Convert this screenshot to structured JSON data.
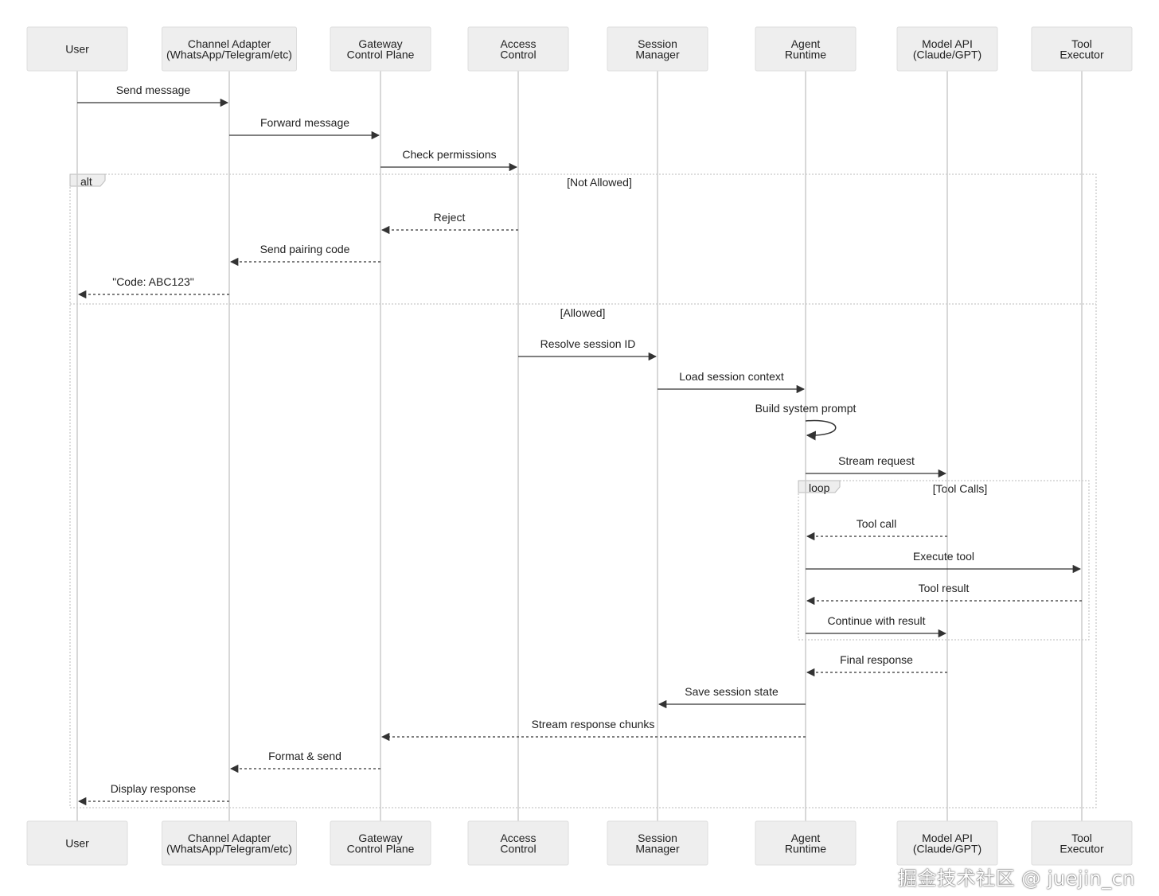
{
  "actors": [
    {
      "label": [
        "User"
      ]
    },
    {
      "label": [
        "Channel Adapter",
        "(WhatsApp/Telegram/etc)"
      ]
    },
    {
      "label": [
        "Gateway",
        "Control Plane"
      ]
    },
    {
      "label": [
        "Access",
        "Control"
      ]
    },
    {
      "label": [
        "Session",
        "Manager"
      ]
    },
    {
      "label": [
        "Agent",
        "Runtime"
      ]
    },
    {
      "label": [
        "Model API",
        "(Claude/GPT)"
      ]
    },
    {
      "label": [
        "Tool",
        "Executor"
      ]
    }
  ],
  "messages": [
    {
      "from": 0,
      "to": 1,
      "label": "Send message",
      "dashed": false
    },
    {
      "from": 1,
      "to": 2,
      "label": "Forward message",
      "dashed": false
    },
    {
      "from": 2,
      "to": 3,
      "label": "Check permissions",
      "dashed": false
    },
    {
      "from": 3,
      "to": 2,
      "label": "Reject",
      "dashed": true
    },
    {
      "from": 2,
      "to": 1,
      "label": "Send pairing code",
      "dashed": true
    },
    {
      "from": 1,
      "to": 0,
      "label": "\"Code: ABC123\"",
      "dashed": true
    },
    {
      "from": 3,
      "to": 4,
      "label": "Resolve session ID",
      "dashed": false
    },
    {
      "from": 4,
      "to": 5,
      "label": "Load session context",
      "dashed": false
    },
    {
      "from": 5,
      "to": 5,
      "label": "Build system prompt",
      "dashed": false
    },
    {
      "from": 5,
      "to": 6,
      "label": "Stream request",
      "dashed": false
    },
    {
      "from": 6,
      "to": 5,
      "label": "Tool call",
      "dashed": true
    },
    {
      "from": 5,
      "to": 7,
      "label": "Execute tool",
      "dashed": false
    },
    {
      "from": 7,
      "to": 5,
      "label": "Tool result",
      "dashed": true
    },
    {
      "from": 5,
      "to": 6,
      "label": "Continue with result",
      "dashed": false
    },
    {
      "from": 6,
      "to": 5,
      "label": "Final response",
      "dashed": true
    },
    {
      "from": 5,
      "to": 4,
      "label": "Save session state",
      "dashed": false
    },
    {
      "from": 5,
      "to": 2,
      "label": "Stream response chunks",
      "dashed": true
    },
    {
      "from": 2,
      "to": 1,
      "label": "Format & send",
      "dashed": true
    },
    {
      "from": 1,
      "to": 0,
      "label": "Display response",
      "dashed": true
    }
  ],
  "fragments": {
    "alt": {
      "keyword": "alt",
      "condition1": "[Not Allowed]",
      "condition2": "[Allowed]"
    },
    "loop": {
      "keyword": "loop",
      "condition": "[Tool Calls]"
    }
  },
  "watermark": "掘金技术社区 @ juejin_cn"
}
